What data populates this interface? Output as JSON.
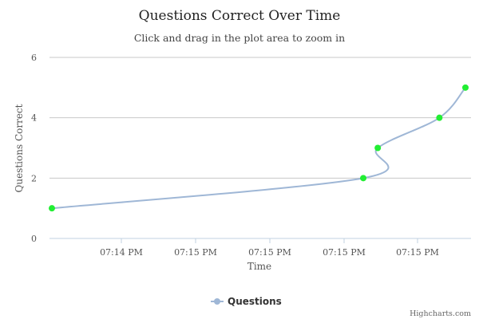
{
  "chart_data": {
    "type": "line",
    "title": "Questions Correct Over Time",
    "subtitle": "Click and drag in the plot area to zoom in",
    "xlabel": "Time",
    "ylabel": "Questions Correct",
    "ylim": [
      0,
      6
    ],
    "y_ticks": [
      "0",
      "2",
      "4",
      "6"
    ],
    "x_tick_labels": [
      "07:14 PM",
      "07:15 PM",
      "07:15 PM",
      "07:15 PM",
      "07:15 PM"
    ],
    "grid": "horizontal",
    "legend_position": "bottom-center",
    "series": [
      {
        "name": "Questions",
        "line_color": "#9fb7d6",
        "marker_color": "#22ee33",
        "points": [
          {
            "x": 0.0,
            "y": 1
          },
          {
            "x": 0.753,
            "y": 2
          },
          {
            "x": 0.788,
            "y": 3
          },
          {
            "x": 0.937,
            "y": 4
          },
          {
            "x": 1.0,
            "y": 5
          }
        ]
      }
    ],
    "credits": "Highcharts.com"
  }
}
